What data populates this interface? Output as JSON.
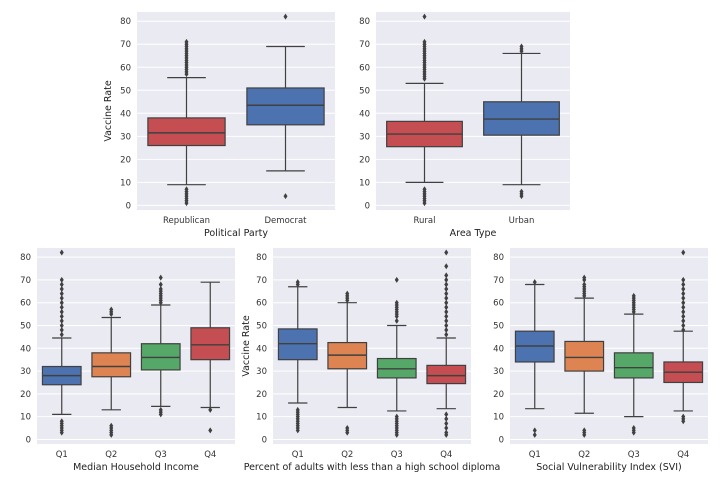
{
  "palette": {
    "plot_bg": "#eaeaf2",
    "grid": "#ffffff",
    "line": "#404040",
    "red": "#c44e52",
    "blue": "#4c72b0",
    "orange": "#dd8452",
    "green": "#55a868"
  },
  "chart_data": [
    {
      "type": "box",
      "xlabel": "Political Party",
      "ylabel": "Vaccine Rate",
      "ylim": [
        -2,
        84
      ],
      "yticks": [
        0,
        10,
        20,
        30,
        40,
        50,
        60,
        70,
        80
      ],
      "grid": true,
      "categories": [
        "Republican",
        "Democrat"
      ],
      "boxes": [
        {
          "q1": 26,
          "median": 31.5,
          "q3": 38,
          "whislo": 9,
          "whishi": 55.5,
          "color": "red",
          "fliers": [
            1,
            2,
            3,
            4,
            5,
            6,
            7,
            57,
            58,
            59,
            60,
            61,
            62,
            63,
            64,
            65,
            66,
            67,
            68,
            69,
            70,
            71
          ]
        },
        {
          "q1": 35,
          "median": 43.5,
          "q3": 51,
          "whislo": 15,
          "whishi": 69,
          "color": "blue",
          "fliers": [
            4,
            82
          ]
        }
      ]
    },
    {
      "type": "box",
      "xlabel": "Area Type",
      "ylabel": "",
      "ylim": [
        -2,
        84
      ],
      "yticks": [
        0,
        10,
        20,
        30,
        40,
        50,
        60,
        70,
        80
      ],
      "grid": true,
      "categories": [
        "Rural",
        "Urban"
      ],
      "boxes": [
        {
          "q1": 25.5,
          "median": 31,
          "q3": 36.5,
          "whislo": 10,
          "whishi": 53,
          "color": "red",
          "fliers": [
            1,
            2,
            3,
            4,
            5,
            6,
            7,
            55,
            56,
            57,
            58,
            59,
            60,
            61,
            62,
            63,
            64,
            65,
            66,
            67,
            68,
            69,
            70,
            71,
            82
          ]
        },
        {
          "q1": 30.5,
          "median": 37.5,
          "q3": 45,
          "whislo": 9,
          "whishi": 66,
          "color": "blue",
          "fliers": [
            4,
            5,
            6,
            67,
            68,
            69
          ]
        }
      ]
    },
    {
      "type": "box",
      "xlabel": "Median Household Income",
      "ylabel": "",
      "ylim": [
        -2,
        84
      ],
      "yticks": [
        0,
        10,
        20,
        30,
        40,
        50,
        60,
        70,
        80
      ],
      "grid": true,
      "categories": [
        "Q1",
        "Q2",
        "Q3",
        "Q4"
      ],
      "boxes": [
        {
          "q1": 24,
          "median": 28,
          "q3": 32,
          "whislo": 11,
          "whishi": 44.5,
          "color": "blue",
          "fliers": [
            3,
            4,
            5,
            6,
            7,
            8,
            46,
            48,
            50,
            52,
            54,
            56,
            58,
            60,
            62,
            64,
            66,
            68,
            70,
            82
          ]
        },
        {
          "q1": 27.5,
          "median": 32,
          "q3": 38,
          "whislo": 13,
          "whishi": 53.5,
          "color": "orange",
          "fliers": [
            2,
            3,
            4,
            5,
            6,
            55,
            56,
            57
          ]
        },
        {
          "q1": 30.5,
          "median": 36,
          "q3": 42,
          "whislo": 14.5,
          "whishi": 59,
          "color": "green",
          "fliers": [
            11,
            12,
            13,
            60,
            61,
            62,
            63,
            64,
            65,
            66,
            68,
            71
          ]
        },
        {
          "q1": 35,
          "median": 41.5,
          "q3": 49,
          "whislo": 14,
          "whishi": 69,
          "color": "red",
          "fliers": [
            4,
            13
          ]
        }
      ]
    },
    {
      "type": "box",
      "xlabel": "Percent of adults with less than a high school diploma",
      "ylabel": "Vaccine Rate",
      "ylim": [
        -2,
        84
      ],
      "yticks": [
        0,
        10,
        20,
        30,
        40,
        50,
        60,
        70,
        80
      ],
      "grid": true,
      "categories": [
        "Q1",
        "Q2",
        "Q3",
        "Q4"
      ],
      "boxes": [
        {
          "q1": 35,
          "median": 42,
          "q3": 48.5,
          "whislo": 16,
          "whishi": 67,
          "color": "blue",
          "fliers": [
            4,
            5,
            6,
            7,
            8,
            9,
            10,
            11,
            12,
            13,
            68,
            69
          ]
        },
        {
          "q1": 31,
          "median": 37,
          "q3": 42.5,
          "whislo": 14,
          "whishi": 60,
          "color": "orange",
          "fliers": [
            3,
            4,
            5,
            61,
            62,
            63,
            64
          ]
        },
        {
          "q1": 27,
          "median": 31,
          "q3": 35.5,
          "whislo": 12.5,
          "whishi": 50,
          "color": "green",
          "fliers": [
            2,
            3,
            4,
            5,
            6,
            7,
            8,
            9,
            10,
            52,
            54,
            55,
            56,
            57,
            58,
            59,
            60,
            70
          ]
        },
        {
          "q1": 24.5,
          "median": 28,
          "q3": 32.5,
          "whislo": 13.5,
          "whishi": 44.5,
          "color": "red",
          "fliers": [
            2,
            3,
            5,
            7,
            9,
            11,
            46,
            48,
            50,
            52,
            54,
            56,
            58,
            60,
            62,
            64,
            66,
            68,
            70,
            72,
            76,
            82
          ]
        }
      ]
    },
    {
      "type": "box",
      "xlabel": "Social Vulnerability Index (SVI)",
      "ylabel": "",
      "ylim": [
        -2,
        84
      ],
      "yticks": [
        0,
        10,
        20,
        30,
        40,
        50,
        60,
        70,
        80
      ],
      "grid": true,
      "categories": [
        "Q1",
        "Q2",
        "Q3",
        "Q4"
      ],
      "boxes": [
        {
          "q1": 34,
          "median": 41,
          "q3": 47.5,
          "whislo": 13.5,
          "whishi": 68,
          "color": "blue",
          "fliers": [
            2,
            4,
            69
          ]
        },
        {
          "q1": 30,
          "median": 36,
          "q3": 43,
          "whislo": 11.5,
          "whishi": 62,
          "color": "orange",
          "fliers": [
            2,
            3,
            4,
            63,
            64,
            65,
            66,
            67,
            68,
            70,
            71
          ]
        },
        {
          "q1": 27,
          "median": 31.5,
          "q3": 38,
          "whislo": 10,
          "whishi": 55,
          "color": "green",
          "fliers": [
            3,
            4,
            5,
            56,
            57,
            58,
            59,
            60,
            61,
            62,
            63
          ]
        },
        {
          "q1": 25,
          "median": 29.5,
          "q3": 34,
          "whislo": 12.5,
          "whishi": 47.5,
          "color": "red",
          "fliers": [
            8,
            9,
            10,
            48,
            50,
            52,
            54,
            56,
            58,
            60,
            62,
            64,
            66,
            68,
            70,
            82
          ]
        }
      ]
    }
  ]
}
